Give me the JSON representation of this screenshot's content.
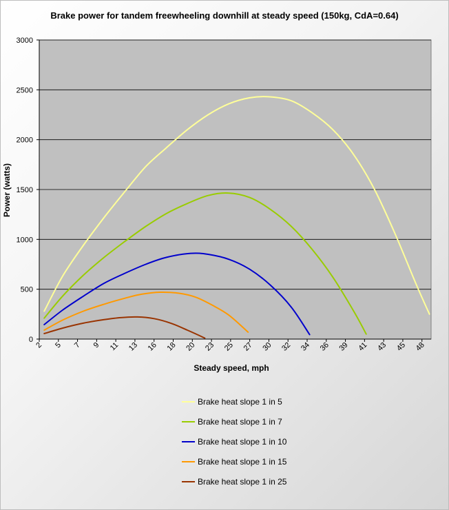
{
  "chart_data": {
    "type": "line",
    "title": "Brake power for tandem freewheeling downhill at steady speed (150kg, CdA=0.64)",
    "xlabel": "Steady speed, mph",
    "ylabel": "Power (watts)",
    "x_tick_labels": [
      "2",
      "5",
      "7",
      "9",
      "11",
      "13",
      "16",
      "18",
      "20",
      "23",
      "25",
      "27",
      "30",
      "32",
      "34",
      "36",
      "39",
      "41",
      "43",
      "45",
      "48"
    ],
    "x_tick_values": [
      2.2,
      4.5,
      6.8,
      9.1,
      11.4,
      13.7,
      16.0,
      18.3,
      20.6,
      22.9,
      25.2,
      27.5,
      29.8,
      32.1,
      34.4,
      36.7,
      39.0,
      41.3,
      43.6,
      45.9,
      48.2
    ],
    "xlim": [
      2.2,
      49.3
    ],
    "ylim": [
      0,
      3000
    ],
    "y_ticks": [
      0,
      500,
      1000,
      1500,
      2000,
      2500,
      3000
    ],
    "grid": "horizontal",
    "legend_position": "bottom",
    "series": [
      {
        "name": "Brake heat slope 1 in 5",
        "color": "#ffff99",
        "x": [
          2.8,
          5,
          7.5,
          10,
          12.5,
          15,
          17.5,
          20,
          22.5,
          25,
          27.5,
          29.9,
          32.5,
          35,
          37.5,
          40,
          42.5,
          45,
          47.5,
          49.1
        ],
        "y": [
          280,
          630,
          940,
          1220,
          1480,
          1730,
          1920,
          2100,
          2250,
          2360,
          2420,
          2430,
          2390,
          2270,
          2100,
          1850,
          1500,
          1050,
          550,
          250
        ]
      },
      {
        "name": "Brake heat slope 1 in 7",
        "color": "#99cc00",
        "x": [
          2.8,
          5,
          7.5,
          10,
          12.5,
          15,
          17.5,
          20,
          22.5,
          24.9,
          27.5,
          30,
          32.5,
          35,
          37.5,
          40,
          41.5
        ],
        "y": [
          210,
          430,
          640,
          820,
          980,
          1130,
          1260,
          1360,
          1440,
          1465,
          1420,
          1300,
          1130,
          900,
          620,
          280,
          50
        ]
      },
      {
        "name": "Brake heat slope 1 in 10",
        "color": "#0000cc",
        "x": [
          2.8,
          5,
          7.5,
          10,
          12.5,
          15,
          17.5,
          20.4,
          22.5,
          25,
          27.5,
          30,
          32.5,
          34.7
        ],
        "y": [
          145,
          290,
          430,
          560,
          660,
          750,
          820,
          860,
          850,
          800,
          700,
          540,
          320,
          45
        ]
      },
      {
        "name": "Brake heat slope 1 in 15",
        "color": "#ff9900",
        "x": [
          2.8,
          5,
          7.5,
          10,
          12.5,
          14.5,
          16.7,
          19,
          21,
          23,
          25,
          27.3
        ],
        "y": [
          90,
          190,
          280,
          350,
          410,
          450,
          470,
          460,
          420,
          340,
          240,
          70
        ]
      },
      {
        "name": "Brake heat slope 1 in 25",
        "color": "#993300",
        "x": [
          2.8,
          5,
          7.5,
          10,
          12,
          14,
          16,
          18,
          20,
          22.1
        ],
        "y": [
          55,
          110,
          160,
          195,
          215,
          222,
          205,
          160,
          90,
          10
        ]
      }
    ]
  }
}
